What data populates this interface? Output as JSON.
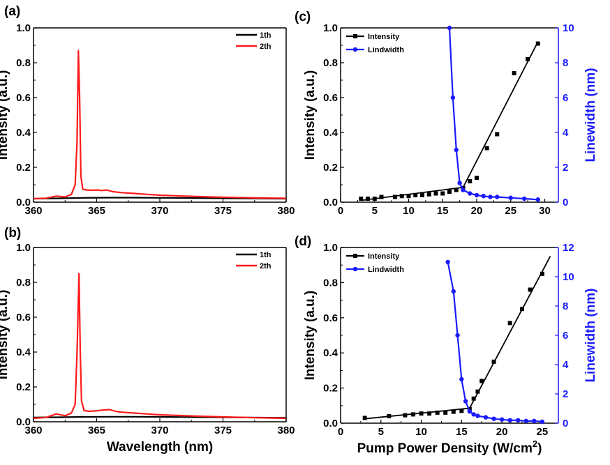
{
  "colors": {
    "black": "#000000",
    "red": "#ff1a1a",
    "blue": "#1a1aff"
  },
  "chart_data": [
    {
      "panel": "(a)",
      "type": "line",
      "xlabel": "",
      "ylabel": "Intensity (a.u.)",
      "xlim": [
        360,
        380
      ],
      "ylim": [
        0,
        1.0
      ],
      "xticks": [
        360,
        365,
        370,
        375,
        380
      ],
      "yticks": [
        0.0,
        0.2,
        0.4,
        0.6,
        0.8,
        1.0
      ],
      "legend": "top-right",
      "series": [
        {
          "name": "1th",
          "color": "#000000",
          "x": [
            360,
            362,
            364,
            366,
            368,
            370,
            372,
            374,
            376,
            378,
            380
          ],
          "y": [
            0.02,
            0.022,
            0.025,
            0.026,
            0.026,
            0.025,
            0.024,
            0.023,
            0.022,
            0.021,
            0.02
          ]
        },
        {
          "name": "2th",
          "color": "#ff1a1a",
          "x": [
            360,
            361.0,
            361.8,
            362.5,
            363.0,
            363.3,
            363.45,
            363.55,
            363.65,
            363.75,
            363.9,
            364.2,
            364.6,
            365.0,
            365.4,
            365.8,
            366.3,
            367,
            368,
            369,
            370,
            372,
            374,
            376,
            378,
            380
          ],
          "y": [
            0.02,
            0.023,
            0.035,
            0.03,
            0.045,
            0.1,
            0.35,
            0.87,
            0.6,
            0.15,
            0.075,
            0.07,
            0.068,
            0.07,
            0.067,
            0.07,
            0.06,
            0.055,
            0.05,
            0.045,
            0.04,
            0.035,
            0.03,
            0.027,
            0.024,
            0.022
          ]
        }
      ]
    },
    {
      "panel": "(b)",
      "type": "line",
      "xlabel": "Wavelength (nm)",
      "ylabel": "Intensity (a.u.)",
      "xlim": [
        360,
        380
      ],
      "ylim": [
        0,
        1.0
      ],
      "xticks": [
        360,
        365,
        370,
        375,
        380
      ],
      "yticks": [
        0.0,
        0.2,
        0.4,
        0.6,
        0.8,
        1.0
      ],
      "legend": "top-right",
      "series": [
        {
          "name": "1th",
          "color": "#000000",
          "x": [
            360,
            362,
            364,
            366,
            368,
            370,
            372,
            374,
            376,
            378,
            380
          ],
          "y": [
            0.025,
            0.026,
            0.028,
            0.029,
            0.029,
            0.028,
            0.027,
            0.026,
            0.025,
            0.024,
            0.023
          ]
        },
        {
          "name": "2th",
          "color": "#ff1a1a",
          "x": [
            360,
            361.0,
            361.8,
            362.5,
            363.0,
            363.3,
            363.45,
            363.6,
            363.7,
            363.8,
            364.0,
            364.4,
            364.8,
            365.2,
            365.6,
            366.0,
            366.5,
            367,
            368,
            369,
            370,
            372,
            374,
            376,
            378,
            380
          ],
          "y": [
            0.02,
            0.025,
            0.045,
            0.035,
            0.05,
            0.1,
            0.4,
            0.85,
            0.4,
            0.12,
            0.065,
            0.06,
            0.062,
            0.065,
            0.068,
            0.07,
            0.06,
            0.055,
            0.05,
            0.045,
            0.04,
            0.035,
            0.03,
            0.026,
            0.023,
            0.02
          ]
        }
      ]
    },
    {
      "panel": "(c)",
      "type": "scatter",
      "xlabel": "",
      "ylabel": "Intensity (a.u.)",
      "y2label": "Linewidth (nm)",
      "xlim": [
        0,
        32
      ],
      "ylim": [
        0,
        1.0
      ],
      "y2lim": [
        0,
        10
      ],
      "xticks": [
        0,
        5,
        10,
        15,
        20,
        25,
        30
      ],
      "yticks": [
        0.0,
        0.2,
        0.4,
        0.6,
        0.8,
        1.0
      ],
      "y2ticks": [
        0,
        2,
        4,
        6,
        8,
        10
      ],
      "legend": "top-left",
      "series": [
        {
          "name": "Intensity",
          "axis": "left",
          "color": "#000000",
          "marker": "square",
          "x": [
            3,
            4,
            5,
            6,
            8,
            9,
            10,
            11,
            12,
            13,
            14,
            15,
            16,
            17,
            18,
            19,
            20,
            21.5,
            23,
            25.5,
            27.5,
            29
          ],
          "y": [
            0.02,
            0.02,
            0.02,
            0.03,
            0.03,
            0.035,
            0.035,
            0.04,
            0.04,
            0.045,
            0.05,
            0.05,
            0.06,
            0.07,
            0.08,
            0.12,
            0.14,
            0.31,
            0.39,
            0.74,
            0.82,
            0.91
          ]
        },
        {
          "name": "Lindwidth",
          "axis": "right",
          "color": "#1a1aff",
          "marker": "circle",
          "x": [
            16,
            16.5,
            17,
            17.5,
            18,
            19,
            20,
            21,
            22,
            23,
            25,
            27,
            29
          ],
          "y": [
            10,
            6,
            3,
            1.1,
            0.7,
            0.5,
            0.4,
            0.35,
            0.3,
            0.3,
            0.25,
            0.2,
            0.15
          ]
        }
      ],
      "fits": [
        {
          "x": [
            3,
            18
          ],
          "y": [
            0.01,
            0.085
          ]
        },
        {
          "x": [
            18,
            29
          ],
          "y": [
            0.085,
            0.92
          ]
        }
      ]
    },
    {
      "panel": "(d)",
      "type": "scatter",
      "xlabel": "Pump Power Density (W/cm",
      "xlabel_sup": "2",
      "xlabel_end": ")",
      "ylabel": "Intensity (a.u.)",
      "y2label": "Linewidth (nm)",
      "xlim": [
        0,
        27
      ],
      "ylim": [
        0,
        1.0
      ],
      "y2lim": [
        0,
        12
      ],
      "xticks": [
        0,
        5,
        10,
        15,
        20,
        25
      ],
      "yticks": [
        0.0,
        0.2,
        0.4,
        0.6,
        0.8,
        1.0
      ],
      "y2ticks": [
        0,
        2,
        4,
        6,
        8,
        10,
        12
      ],
      "legend": "top-left",
      "series": [
        {
          "name": "Intensity",
          "axis": "left",
          "color": "#000000",
          "marker": "square",
          "x": [
            3,
            6,
            8,
            9,
            10,
            11,
            12,
            13,
            14,
            15,
            16,
            16.5,
            17,
            17.5,
            19,
            21,
            22.5,
            23.5,
            25
          ],
          "y": [
            0.03,
            0.04,
            0.045,
            0.05,
            0.055,
            0.055,
            0.06,
            0.06,
            0.065,
            0.07,
            0.08,
            0.14,
            0.18,
            0.24,
            0.35,
            0.57,
            0.65,
            0.76,
            0.85
          ]
        },
        {
          "name": "Lindwidth",
          "axis": "right",
          "color": "#1a1aff",
          "marker": "circle",
          "x": [
            13.3,
            14,
            14.5,
            15,
            15.5,
            16,
            16.5,
            17,
            18,
            19,
            20,
            21,
            22,
            23,
            24,
            25
          ],
          "y": [
            11,
            9,
            6,
            3,
            1.5,
            0.8,
            0.6,
            0.5,
            0.4,
            0.3,
            0.25,
            0.2,
            0.2,
            0.15,
            0.15,
            0.1
          ]
        }
      ],
      "fits": [
        {
          "x": [
            3,
            16
          ],
          "y": [
            0.025,
            0.085
          ]
        },
        {
          "x": [
            16,
            26
          ],
          "y": [
            0.085,
            0.95
          ]
        }
      ]
    }
  ]
}
